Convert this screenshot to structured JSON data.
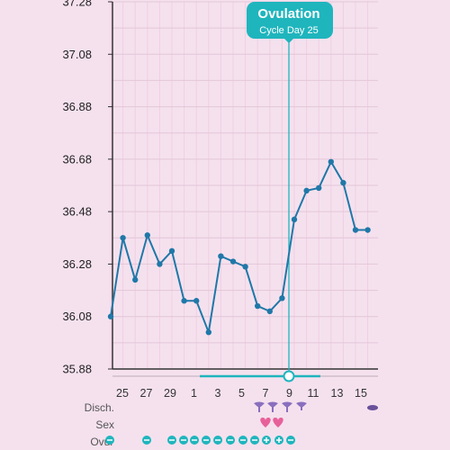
{
  "chart_data": {
    "type": "line",
    "ylim": [
      35.88,
      37.28
    ],
    "y_ticks": [
      "37.28",
      "37.08",
      "36.88",
      "36.68",
      "36.48",
      "36.28",
      "36.08",
      "35.88"
    ],
    "x_tick_labels": [
      "25",
      "27",
      "29",
      "1",
      "3",
      "5",
      "7",
      "9",
      "11",
      "13",
      "15"
    ],
    "series": [
      {
        "values": [
          36.08,
          36.38,
          36.22,
          36.39,
          36.28,
          36.33,
          36.14,
          36.14,
          36.02,
          36.31,
          36.29,
          36.27,
          36.12,
          36.1,
          36.15,
          36.45,
          36.56,
          36.57,
          36.67,
          36.59,
          36.41,
          36.41
        ]
      }
    ],
    "line_color": "#1f78a8",
    "grid": true,
    "ovulation_marker": {
      "title": "Ovulation",
      "subtitle": "Cycle Day 25",
      "day_index": 15,
      "color": "#1fb5bd"
    }
  },
  "rows": {
    "discharge_label": "Disch.",
    "sex_label": "Sex",
    "ovulation_label": "Ovul"
  },
  "icons": {
    "discharge": [
      "discharge-icon",
      "discharge-icon",
      "discharge-icon",
      "discharge-icon",
      "discharge-icon"
    ],
    "sex": [
      "heart-icon",
      "heart-icon"
    ],
    "ovulation_test": [
      "negative-test-icon",
      "positive-test-icon"
    ]
  },
  "colors": {
    "background": "#f5e1ee",
    "accent": "#1fb5bd",
    "heart": "#e8609a",
    "discharge": "#8a6fbf"
  }
}
